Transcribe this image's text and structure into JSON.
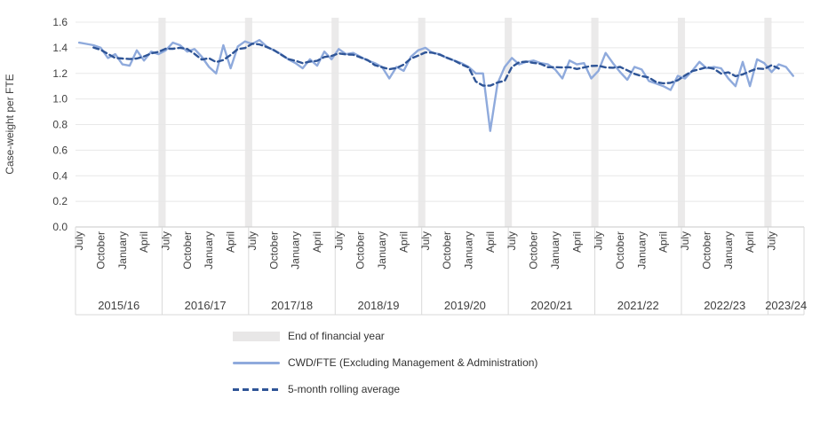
{
  "chart_data": {
    "type": "line",
    "title": "",
    "ylabel": "Case-weight per FTE",
    "ylim": [
      0.0,
      1.6
    ],
    "ytick_interval": 0.2,
    "ytick_labels": [
      "0.0",
      "0.2",
      "0.4",
      "0.6",
      "0.8",
      "1.0",
      "1.2",
      "1.4",
      "1.6"
    ],
    "grid": "horizontal",
    "legend_position": "bottom",
    "x": {
      "years": [
        "2015/16",
        "2016/17",
        "2017/18",
        "2018/19",
        "2019/20",
        "2020/21",
        "2021/22",
        "2022/23",
        "2023/24"
      ],
      "month_ticks_per_year": [
        "July",
        "October",
        "January",
        "April"
      ],
      "last_year_month_ticks": [
        "July"
      ],
      "month_tick_offsets": [
        0,
        3,
        6,
        9
      ],
      "first_month": "July 2015",
      "n_months": 100,
      "n_slots": 101
    },
    "bands": {
      "label": "End of financial year",
      "color": "#EBEAEA",
      "description": "vertical band at the June/July boundary of each financial year"
    },
    "series": [
      {
        "name": "CWD/FTE (Excluding Management & Administration)",
        "color": "#8FAADC",
        "line_style": "solid",
        "start_index": 0,
        "values": [
          1.44,
          1.43,
          1.42,
          1.4,
          1.32,
          1.35,
          1.27,
          1.26,
          1.38,
          1.3,
          1.37,
          1.35,
          1.38,
          1.44,
          1.42,
          1.37,
          1.39,
          1.33,
          1.25,
          1.2,
          1.42,
          1.24,
          1.41,
          1.45,
          1.43,
          1.46,
          1.41,
          1.38,
          1.35,
          1.31,
          1.28,
          1.24,
          1.31,
          1.26,
          1.37,
          1.31,
          1.39,
          1.35,
          1.36,
          1.33,
          1.3,
          1.28,
          1.25,
          1.16,
          1.25,
          1.22,
          1.33,
          1.38,
          1.4,
          1.36,
          1.35,
          1.32,
          1.3,
          1.28,
          1.25,
          1.2,
          1.2,
          0.75,
          1.12,
          1.25,
          1.32,
          1.27,
          1.29,
          1.3,
          1.28,
          1.27,
          1.23,
          1.16,
          1.3,
          1.27,
          1.28,
          1.16,
          1.22,
          1.36,
          1.28,
          1.21,
          1.15,
          1.25,
          1.23,
          1.14,
          1.12,
          1.1,
          1.07,
          1.18,
          1.16,
          1.22,
          1.29,
          1.24,
          1.25,
          1.24,
          1.16,
          1.1,
          1.29,
          1.1,
          1.31,
          1.28,
          1.21,
          1.27,
          1.25,
          1.18
        ]
      },
      {
        "name": "5-month rolling average",
        "color": "#2F5597",
        "line_style": "dashed",
        "start_index": 2,
        "values": [
          1.402,
          1.384,
          1.352,
          1.32,
          1.316,
          1.312,
          1.316,
          1.332,
          1.356,
          1.368,
          1.392,
          1.392,
          1.4,
          1.39,
          1.352,
          1.308,
          1.318,
          1.288,
          1.304,
          1.344,
          1.39,
          1.398,
          1.432,
          1.426,
          1.406,
          1.382,
          1.346,
          1.312,
          1.298,
          1.28,
          1.292,
          1.298,
          1.328,
          1.336,
          1.356,
          1.348,
          1.346,
          1.324,
          1.304,
          1.264,
          1.248,
          1.232,
          1.242,
          1.268,
          1.316,
          1.338,
          1.364,
          1.362,
          1.346,
          1.322,
          1.3,
          1.27,
          1.246,
          1.136,
          1.104,
          1.104,
          1.128,
          1.142,
          1.25,
          1.286,
          1.292,
          1.282,
          1.274,
          1.248,
          1.248,
          1.246,
          1.248,
          1.234,
          1.246,
          1.258,
          1.26,
          1.246,
          1.244,
          1.25,
          1.224,
          1.196,
          1.178,
          1.168,
          1.132,
          1.122,
          1.126,
          1.146,
          1.184,
          1.218,
          1.232,
          1.248,
          1.236,
          1.198,
          1.208,
          1.178,
          1.192,
          1.216,
          1.238,
          1.234,
          1.264,
          1.238
        ]
      }
    ]
  },
  "colors": {
    "gridline": "#E8E8E8",
    "axis_line": "#C9C9C9",
    "label_divider": "#D9D9D9",
    "tick_text": "#404040"
  }
}
